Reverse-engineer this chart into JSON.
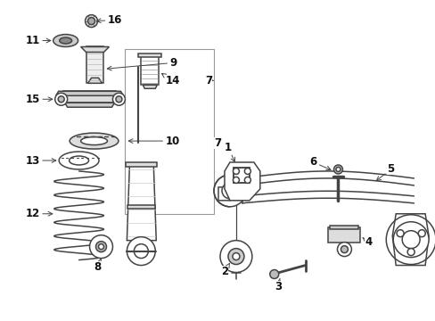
{
  "background_color": "#ffffff",
  "fig_width": 4.89,
  "fig_height": 3.6,
  "dpi": 100,
  "line_color": "#444444",
  "text_color": "#111111",
  "label_fontsize": 8.5,
  "lw_main": 1.1,
  "lw_thin": 0.7,
  "lw_arrow": 0.7
}
